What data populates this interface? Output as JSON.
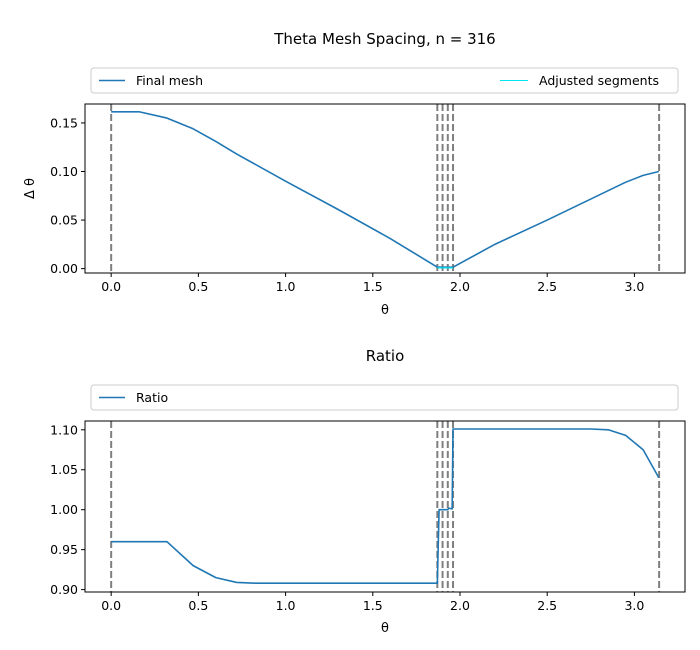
{
  "chart_data": [
    {
      "type": "line",
      "title": "Theta Mesh Spacing, n = 316",
      "xlabel": "θ",
      "ylabel": "Δ θ",
      "xlim": [
        -0.15,
        3.29
      ],
      "ylim": [
        -0.0045,
        0.1695
      ],
      "xticks": [
        0.0,
        0.5,
        1.0,
        1.5,
        2.0,
        2.5,
        3.0
      ],
      "xtick_labels": [
        "0.0",
        "0.5",
        "1.0",
        "1.5",
        "2.0",
        "2.5",
        "3.0"
      ],
      "yticks": [
        0.0,
        0.05,
        0.1,
        0.15
      ],
      "ytick_labels": [
        "0.00",
        "0.05",
        "0.10",
        "0.15"
      ],
      "grid": false,
      "legend": "top, outside, 2 columns",
      "vertical_lines": [
        0.0,
        1.87,
        1.9,
        1.93,
        1.96,
        3.1416
      ],
      "series": [
        {
          "name": "Final mesh",
          "color": "#1f77b4",
          "x": [
            0.0,
            0.16,
            0.32,
            0.47,
            0.6,
            0.72,
            1.0,
            1.3,
            1.6,
            1.87,
            1.9,
            1.93,
            1.96,
            2.2,
            2.5,
            2.8,
            2.95,
            3.05,
            3.14
          ],
          "y": [
            0.1615,
            0.1615,
            0.155,
            0.144,
            0.131,
            0.118,
            0.09,
            0.061,
            0.031,
            0.0015,
            0.0015,
            0.0015,
            0.0015,
            0.025,
            0.05,
            0.076,
            0.089,
            0.096,
            0.1
          ]
        },
        {
          "name": "Adjusted segments",
          "color": "#00e5ee",
          "x": [
            1.87,
            1.9,
            1.93,
            1.96
          ],
          "y": [
            0.0008,
            0.0008,
            0.0008,
            0.0008
          ]
        }
      ]
    },
    {
      "type": "line",
      "title": "Ratio",
      "xlabel": "θ",
      "ylabel": "",
      "xlim": [
        -0.15,
        3.29
      ],
      "ylim": [
        0.897,
        1.111
      ],
      "xticks": [
        0.0,
        0.5,
        1.0,
        1.5,
        2.0,
        2.5,
        3.0
      ],
      "xtick_labels": [
        "0.0",
        "0.5",
        "1.0",
        "1.5",
        "2.0",
        "2.5",
        "3.0"
      ],
      "yticks": [
        0.9,
        0.95,
        1.0,
        1.05,
        1.1
      ],
      "ytick_labels": [
        "0.90",
        "0.95",
        "1.00",
        "1.05",
        "1.10"
      ],
      "grid": false,
      "legend": "top, outside",
      "vertical_lines": [
        0.0,
        1.87,
        1.9,
        1.93,
        1.96,
        3.1416
      ],
      "series": [
        {
          "name": "Ratio",
          "color": "#1f77b4",
          "x": [
            0.0,
            0.16,
            0.32,
            0.47,
            0.6,
            0.72,
            0.83,
            1.0,
            1.5,
            1.87,
            1.88,
            1.895,
            1.93,
            1.935,
            1.955,
            1.96,
            2.0,
            2.5,
            2.75,
            2.85,
            2.95,
            3.05,
            3.14
          ],
          "y": [
            0.96,
            0.96,
            0.96,
            0.93,
            0.915,
            0.909,
            0.908,
            0.908,
            0.908,
            0.908,
            1.0,
            1.0,
            1.0,
            1.002,
            1.001,
            1.101,
            1.101,
            1.101,
            1.101,
            1.1,
            1.093,
            1.075,
            1.04
          ]
        }
      ]
    }
  ]
}
